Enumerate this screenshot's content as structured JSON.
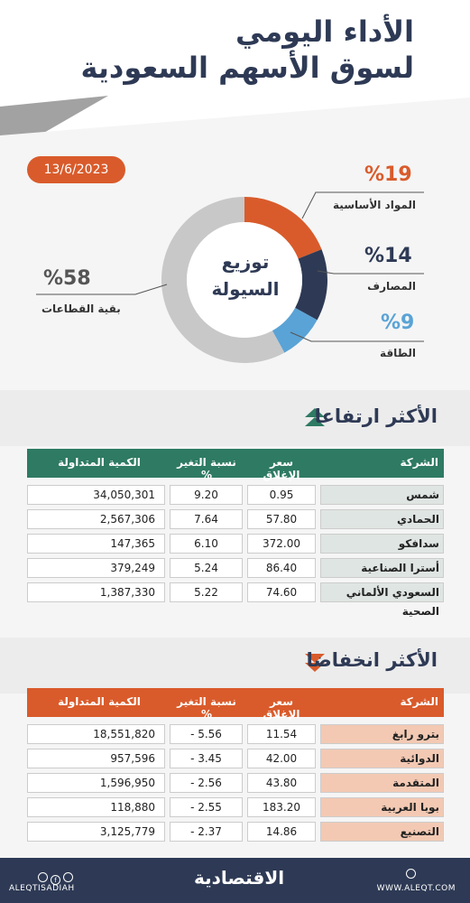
{
  "header": {
    "title_line1": "الأداء اليومي",
    "title_line2": "لسوق الأسهم السعودية",
    "date": "13/6/2023"
  },
  "liquidity": {
    "center_line1": "توزيع",
    "center_line2": "السيولة",
    "segments": [
      {
        "label": "المواد الأساسية",
        "pct_text": "%19",
        "value": 19,
        "color": "#d95b2b"
      },
      {
        "label": "المصارف",
        "pct_text": "%14",
        "value": 14,
        "color": "#2e3a55"
      },
      {
        "label": "الطاقة",
        "pct_text": "%9",
        "value": 9,
        "color": "#5aa3d6"
      },
      {
        "label": "بقية القطاعات",
        "pct_text": "%58",
        "value": 58,
        "color": "#c8c8c8"
      }
    ]
  },
  "gainers": {
    "title": "الأكثر ارتفاعا",
    "header_color": "#2e7a62",
    "columns": {
      "company": "الشركة",
      "close": "سعر الإغلاق",
      "change": "نسبة التغير %",
      "volume": "الكمية المتداولة"
    },
    "rows": [
      {
        "company": "شمس",
        "close": "0.95",
        "change": "9.20",
        "volume": "34,050,301"
      },
      {
        "company": "الحمادي",
        "close": "57.80",
        "change": "7.64",
        "volume": "2,567,306"
      },
      {
        "company": "سدافكو",
        "close": "372.00",
        "change": "6.10",
        "volume": "147,365"
      },
      {
        "company": "أسترا الصناعية",
        "close": "86.40",
        "change": "5.24",
        "volume": "379,249"
      },
      {
        "company": "السعودي الألماني الصحية",
        "close": "74.60",
        "change": "5.22",
        "volume": "1,387,330"
      }
    ]
  },
  "losers": {
    "title": "الأكثر انخفاضا",
    "header_color": "#d95b2b",
    "columns": {
      "company": "الشركة",
      "close": "سعر الإغلاق",
      "change": "نسبة التغير %",
      "volume": "الكمية المتداولة"
    },
    "rows": [
      {
        "company": "بترو رابغ",
        "close": "11.54",
        "change": "- 5.56",
        "volume": "18,551,820"
      },
      {
        "company": "الدوائية",
        "close": "42.00",
        "change": "- 3.45",
        "volume": "957,596"
      },
      {
        "company": "المتقدمة",
        "close": "43.80",
        "change": "- 2.56",
        "volume": "1,596,950"
      },
      {
        "company": "بوبا العربية",
        "close": "183.20",
        "change": "- 2.55",
        "volume": "118,880"
      },
      {
        "company": "التصنيع",
        "close": "14.86",
        "change": "- 2.37",
        "volume": "3,125,779"
      }
    ]
  },
  "footer": {
    "brand": "الاقتصادية",
    "handle": "ALEQTISADIAH",
    "site": "WWW.ALEQT.COM"
  }
}
